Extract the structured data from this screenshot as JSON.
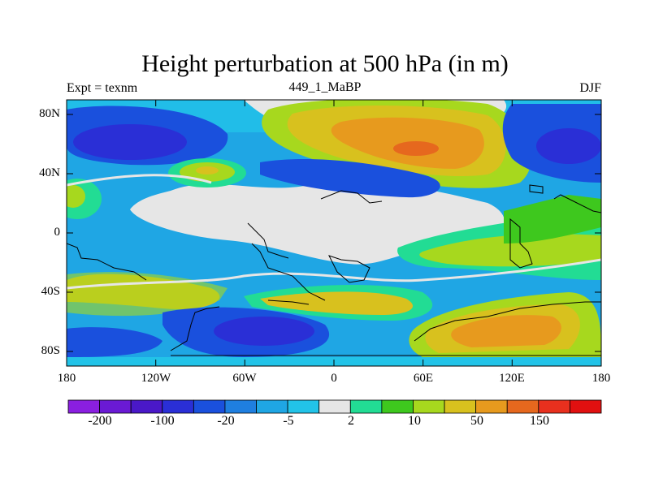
{
  "title": "Height perturbation at 500 hPa (in m)",
  "left_label": "Expt = texnm",
  "center_label": "449_1_MaBP",
  "right_label": "DJF",
  "map": {
    "projection": "cylindrical-equidistant",
    "lon_range": [
      -180,
      180
    ],
    "lat_range": [
      -90,
      90
    ],
    "lat_ticks": [
      "80N",
      "40N",
      "0",
      "40S",
      "80S"
    ],
    "lon_ticks": [
      "180",
      "120W",
      "60W",
      "0",
      "60E",
      "120E",
      "180"
    ]
  },
  "colorbar": {
    "colors": [
      "#8a1fe0",
      "#6a1ad4",
      "#4a18c8",
      "#2a2fd6",
      "#1a50dd",
      "#1f7fe0",
      "#1fa6e4",
      "#22c3e8",
      "#e6e6e6",
      "#22dc94",
      "#3ec81e",
      "#a7d81e",
      "#d8c11e",
      "#e79a1e",
      "#e6681e",
      "#e8301e",
      "#e11010"
    ],
    "tick_labels": [
      "-200",
      "-100",
      "-20",
      "-5",
      "2",
      "10",
      "50",
      "150"
    ]
  }
}
